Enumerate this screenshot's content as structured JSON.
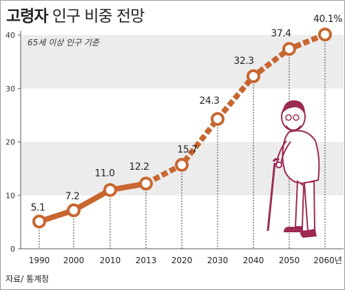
{
  "title_bold": "고령자",
  "title_rest": "인구 비중 전망",
  "note": "65세 이상 인구 기준",
  "source": "자료/ 통계청",
  "colors": {
    "line": "#c8662f",
    "band": "#ececec",
    "figure": "#9c2a52"
  },
  "icons": [
    "elderly-person-icon"
  ],
  "chart_data": {
    "type": "line",
    "title": "고령자 인구 비중 전망",
    "subtitle": "65세 이상 인구 기준",
    "categories": [
      "1990",
      "2000",
      "2010",
      "2013",
      "2020",
      "2030",
      "2040",
      "2050",
      "2060년"
    ],
    "values": [
      5.1,
      7.2,
      11.0,
      12.2,
      15.7,
      24.3,
      32.3,
      37.4,
      40.1
    ],
    "value_labels": [
      "5.1",
      "7.2",
      "11.0",
      "12.2",
      "15.7",
      "24.3",
      "32.3",
      "37.4",
      "40.1%"
    ],
    "observed_until": "2013",
    "projected_from": "2013",
    "yticks": [
      "0",
      "10",
      "20",
      "30",
      "40"
    ],
    "ylim": [
      0,
      40
    ],
    "grid": "alternating horizontal bands",
    "legend": "none"
  }
}
